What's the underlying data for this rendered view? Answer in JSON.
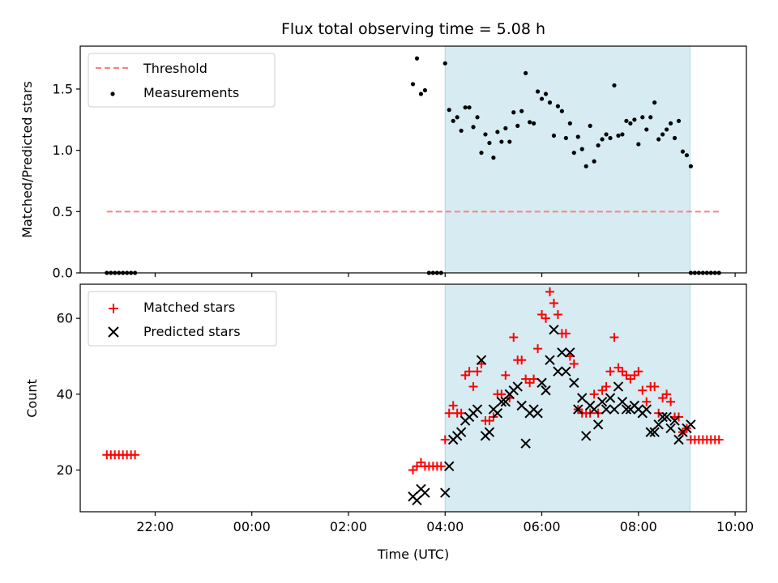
{
  "chart_data": [
    {
      "type": "scatter",
      "title": "Flux total observing time = 5.08 h",
      "ylabel": "Matched/Predicted stars",
      "xlim": [
        "20:27",
        "10:14"
      ],
      "ylim": [
        0,
        1.85
      ],
      "yticks": [
        0.0,
        0.5,
        1.0,
        1.5
      ],
      "ytick_labels": [
        "0.0",
        "0.5",
        "1.0",
        "1.5"
      ],
      "highlight_span": {
        "start": "04:00",
        "end": "09:04",
        "color": "#add8e6"
      },
      "legend": {
        "placement": "top-left",
        "entries": [
          "Threshold",
          "Measurements"
        ]
      },
      "series": [
        {
          "name": "Threshold",
          "kind": "dashed-line",
          "color": "#ff7f7f",
          "points": [
            [
              "21:00",
              0.5
            ],
            [
              "09:40",
              0.5
            ]
          ]
        },
        {
          "name": "Measurements",
          "kind": "dot",
          "color": "#000000",
          "points": [
            [
              "21:00",
              0
            ],
            [
              "21:05",
              0
            ],
            [
              "21:10",
              0
            ],
            [
              "21:15",
              0
            ],
            [
              "21:20",
              0
            ],
            [
              "21:25",
              0
            ],
            [
              "21:30",
              0
            ],
            [
              "21:35",
              0
            ],
            [
              "03:20",
              1.54
            ],
            [
              "03:25",
              1.75
            ],
            [
              "03:30",
              1.46
            ],
            [
              "03:35",
              1.49
            ],
            [
              "03:40",
              0
            ],
            [
              "03:45",
              0
            ],
            [
              "03:50",
              0
            ],
            [
              "03:55",
              0
            ],
            [
              "04:00",
              1.71
            ],
            [
              "04:05",
              1.33
            ],
            [
              "04:10",
              1.24
            ],
            [
              "04:15",
              1.27
            ],
            [
              "04:20",
              1.16
            ],
            [
              "04:25",
              1.35
            ],
            [
              "04:30",
              1.35
            ],
            [
              "04:35",
              1.19
            ],
            [
              "04:40",
              1.27
            ],
            [
              "04:45",
              0.98
            ],
            [
              "04:50",
              1.13
            ],
            [
              "04:55",
              1.06
            ],
            [
              "05:00",
              0.94
            ],
            [
              "05:05",
              1.15
            ],
            [
              "05:10",
              1.07
            ],
            [
              "05:15",
              1.18
            ],
            [
              "05:20",
              1.07
            ],
            [
              "05:25",
              1.31
            ],
            [
              "05:30",
              1.2
            ],
            [
              "05:35",
              1.32
            ],
            [
              "05:40",
              1.63
            ],
            [
              "05:45",
              1.23
            ],
            [
              "05:50",
              1.22
            ],
            [
              "05:55",
              1.48
            ],
            [
              "06:00",
              1.42
            ],
            [
              "06:05",
              1.46
            ],
            [
              "06:10",
              1.39
            ],
            [
              "06:15",
              1.12
            ],
            [
              "06:20",
              1.36
            ],
            [
              "06:25",
              1.32
            ],
            [
              "06:30",
              1.1
            ],
            [
              "06:35",
              1.22
            ],
            [
              "06:40",
              0.98
            ],
            [
              "06:45",
              1.11
            ],
            [
              "06:50",
              1.01
            ],
            [
              "06:55",
              0.87
            ],
            [
              "07:00",
              1.2
            ],
            [
              "07:05",
              0.91
            ],
            [
              "07:10",
              1.04
            ],
            [
              "07:15",
              1.09
            ],
            [
              "07:20",
              1.13
            ],
            [
              "07:25",
              1.1
            ],
            [
              "07:30",
              1.53
            ],
            [
              "07:35",
              1.12
            ],
            [
              "07:40",
              1.13
            ],
            [
              "07:45",
              1.24
            ],
            [
              "07:50",
              1.22
            ],
            [
              "07:55",
              1.25
            ],
            [
              "08:00",
              1.05
            ],
            [
              "08:05",
              1.27
            ],
            [
              "08:10",
              1.17
            ],
            [
              "08:15",
              1.27
            ],
            [
              "08:20",
              1.39
            ],
            [
              "08:25",
              1.09
            ],
            [
              "08:30",
              1.13
            ],
            [
              "08:35",
              1.17
            ],
            [
              "08:40",
              1.22
            ],
            [
              "08:45",
              1.1
            ],
            [
              "08:50",
              1.24
            ],
            [
              "08:55",
              0.99
            ],
            [
              "09:00",
              0.96
            ],
            [
              "09:05",
              0.87
            ],
            [
              "09:05",
              0
            ],
            [
              "09:10",
              0
            ],
            [
              "09:15",
              0
            ],
            [
              "09:20",
              0
            ],
            [
              "09:25",
              0
            ],
            [
              "09:30",
              0
            ],
            [
              "09:35",
              0
            ],
            [
              "09:40",
              0
            ]
          ]
        }
      ]
    },
    {
      "type": "scatter",
      "xlabel": "Time (UTC)",
      "ylabel": "Count",
      "xlim": [
        "20:27",
        "10:14"
      ],
      "ylim": [
        9,
        69
      ],
      "yticks": [
        20,
        40,
        60
      ],
      "ytick_labels": [
        "20",
        "40",
        "60"
      ],
      "xticks": [
        "22:00",
        "00:00",
        "02:00",
        "04:00",
        "06:00",
        "08:00",
        "10:00"
      ],
      "highlight_span": {
        "start": "04:00",
        "end": "09:04",
        "color": "#add8e6"
      },
      "legend": {
        "placement": "top-left",
        "entries": [
          "Matched stars",
          "Predicted stars"
        ]
      },
      "series": [
        {
          "name": "Matched stars",
          "kind": "plus",
          "color": "#ff0000",
          "points": [
            [
              "21:00",
              24
            ],
            [
              "21:05",
              24
            ],
            [
              "21:10",
              24
            ],
            [
              "21:15",
              24
            ],
            [
              "21:20",
              24
            ],
            [
              "21:25",
              24
            ],
            [
              "21:30",
              24
            ],
            [
              "21:35",
              24
            ],
            [
              "03:20",
              20
            ],
            [
              "03:25",
              21
            ],
            [
              "03:30",
              22
            ],
            [
              "03:35",
              21
            ],
            [
              "03:40",
              21
            ],
            [
              "03:45",
              21
            ],
            [
              "03:50",
              21
            ],
            [
              "03:55",
              21
            ],
            [
              "04:00",
              28
            ],
            [
              "04:05",
              35
            ],
            [
              "04:10",
              37
            ],
            [
              "04:15",
              35
            ],
            [
              "04:20",
              35
            ],
            [
              "04:25",
              45
            ],
            [
              "04:30",
              46
            ],
            [
              "04:35",
              42
            ],
            [
              "04:40",
              46
            ],
            [
              "04:45",
              48
            ],
            [
              "04:50",
              33
            ],
            [
              "04:55",
              33
            ],
            [
              "05:00",
              34
            ],
            [
              "05:05",
              40
            ],
            [
              "05:10",
              40
            ],
            [
              "05:15",
              45
            ],
            [
              "05:20",
              39
            ],
            [
              "05:25",
              55
            ],
            [
              "05:30",
              49
            ],
            [
              "05:35",
              49
            ],
            [
              "05:40",
              44
            ],
            [
              "05:45",
              43
            ],
            [
              "05:50",
              44
            ],
            [
              "05:55",
              52
            ],
            [
              "06:00",
              61
            ],
            [
              "06:05",
              60
            ],
            [
              "06:10",
              67
            ],
            [
              "06:15",
              64
            ],
            [
              "06:20",
              61
            ],
            [
              "06:25",
              56
            ],
            [
              "06:30",
              56
            ],
            [
              "06:35",
              50
            ],
            [
              "06:40",
              48
            ],
            [
              "06:45",
              36
            ],
            [
              "06:50",
              35
            ],
            [
              "06:55",
              35
            ],
            [
              "07:00",
              35
            ],
            [
              "07:05",
              40
            ],
            [
              "07:10",
              35
            ],
            [
              "07:15",
              41
            ],
            [
              "07:20",
              42
            ],
            [
              "07:25",
              46
            ],
            [
              "07:30",
              55
            ],
            [
              "07:35",
              47
            ],
            [
              "07:40",
              46
            ],
            [
              "07:45",
              45
            ],
            [
              "07:50",
              44
            ],
            [
              "07:55",
              45
            ],
            [
              "08:00",
              46
            ],
            [
              "08:05",
              41
            ],
            [
              "08:10",
              38
            ],
            [
              "08:15",
              42
            ],
            [
              "08:20",
              42
            ],
            [
              "08:25",
              35
            ],
            [
              "08:30",
              39
            ],
            [
              "08:35",
              40
            ],
            [
              "08:40",
              38
            ],
            [
              "08:45",
              34
            ],
            [
              "08:50",
              34
            ],
            [
              "08:55",
              30
            ],
            [
              "09:00",
              31
            ],
            [
              "09:05",
              28
            ],
            [
              "09:10",
              28
            ],
            [
              "09:15",
              28
            ],
            [
              "09:20",
              28
            ],
            [
              "09:25",
              28
            ],
            [
              "09:30",
              28
            ],
            [
              "09:35",
              28
            ],
            [
              "09:40",
              28
            ]
          ]
        },
        {
          "name": "Predicted stars",
          "kind": "x",
          "color": "#000000",
          "points": [
            [
              "03:20",
              13
            ],
            [
              "03:25",
              12
            ],
            [
              "03:30",
              15
            ],
            [
              "03:35",
              14
            ],
            [
              "04:00",
              14
            ],
            [
              "04:05",
              21
            ],
            [
              "04:10",
              28
            ],
            [
              "04:15",
              29
            ],
            [
              "04:20",
              30
            ],
            [
              "04:25",
              33
            ],
            [
              "04:30",
              34
            ],
            [
              "04:35",
              35
            ],
            [
              "04:40",
              36
            ],
            [
              "04:45",
              49
            ],
            [
              "04:50",
              29
            ],
            [
              "04:55",
              30
            ],
            [
              "05:00",
              36
            ],
            [
              "05:05",
              35
            ],
            [
              "05:10",
              38
            ],
            [
              "05:15",
              38
            ],
            [
              "05:20",
              40
            ],
            [
              "05:25",
              41
            ],
            [
              "05:30",
              42
            ],
            [
              "05:35",
              37
            ],
            [
              "05:40",
              27
            ],
            [
              "05:45",
              35
            ],
            [
              "05:50",
              36
            ],
            [
              "05:55",
              35
            ],
            [
              "06:00",
              43
            ],
            [
              "06:05",
              41
            ],
            [
              "06:10",
              49
            ],
            [
              "06:15",
              57
            ],
            [
              "06:20",
              46
            ],
            [
              "06:25",
              51
            ],
            [
              "06:30",
              46
            ],
            [
              "06:35",
              51
            ],
            [
              "06:40",
              43
            ],
            [
              "06:45",
              36
            ],
            [
              "06:50",
              39
            ],
            [
              "06:55",
              29
            ],
            [
              "07:00",
              37
            ],
            [
              "07:05",
              36
            ],
            [
              "07:10",
              32
            ],
            [
              "07:15",
              38
            ],
            [
              "07:20",
              36
            ],
            [
              "07:25",
              39
            ],
            [
              "07:30",
              36
            ],
            [
              "07:35",
              42
            ],
            [
              "07:40",
              38
            ],
            [
              "07:45",
              36
            ],
            [
              "07:50",
              36
            ],
            [
              "07:55",
              37
            ],
            [
              "08:00",
              36
            ],
            [
              "08:05",
              35
            ],
            [
              "08:10",
              36
            ],
            [
              "08:15",
              30
            ],
            [
              "08:20",
              30
            ],
            [
              "08:25",
              32
            ],
            [
              "08:30",
              34
            ],
            [
              "08:35",
              34
            ],
            [
              "08:40",
              31
            ],
            [
              "08:45",
              33
            ],
            [
              "08:50",
              28
            ],
            [
              "08:55",
              30
            ],
            [
              "09:00",
              31
            ],
            [
              "09:05",
              32
            ]
          ]
        }
      ]
    }
  ]
}
